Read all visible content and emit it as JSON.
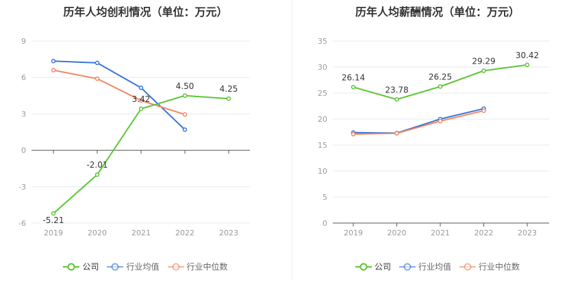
{
  "chart_data": [
    {
      "type": "line",
      "title": "历年人均创利情况（单位：万元）",
      "categories": [
        "2019",
        "2020",
        "2021",
        "2022",
        "2023"
      ],
      "ylim": [
        -6,
        9
      ],
      "yticks": [
        "9",
        "6",
        "3",
        "0",
        "-3",
        "-6"
      ],
      "series": [
        {
          "name": "公司",
          "color": "#5dc535",
          "values": [
            -5.21,
            -2.01,
            3.42,
            4.5,
            4.25
          ],
          "labels": [
            "-5.21",
            "-2.01",
            "3.42",
            "4.50",
            "4.25"
          ]
        },
        {
          "name": "行业均值",
          "color": "#3a73d6",
          "values": [
            7.35,
            7.2,
            5.15,
            1.7,
            null
          ]
        },
        {
          "name": "行业中位数",
          "color": "#f28762",
          "values": [
            6.6,
            5.9,
            4.1,
            2.95,
            null
          ]
        }
      ],
      "grid": true,
      "legend_position": "bottom"
    },
    {
      "type": "line",
      "title": "历年人均薪酬情况（单位：万元）",
      "categories": [
        "2019",
        "2020",
        "2021",
        "2022",
        "2023"
      ],
      "ylim": [
        0,
        35
      ],
      "yticks": [
        "35",
        "30",
        "25",
        "20",
        "15",
        "10",
        "5",
        "0"
      ],
      "series": [
        {
          "name": "公司",
          "color": "#5dc535",
          "values": [
            26.14,
            23.78,
            26.25,
            29.29,
            30.42
          ],
          "labels": [
            "26.14",
            "23.78",
            "26.25",
            "29.29",
            "30.42"
          ]
        },
        {
          "name": "行业均值",
          "color": "#3a73d6",
          "values": [
            17.4,
            17.3,
            20.0,
            22.0,
            null
          ]
        },
        {
          "name": "行业中位数",
          "color": "#f28762",
          "values": [
            17.1,
            17.25,
            19.6,
            21.6,
            null
          ]
        }
      ],
      "grid": true,
      "legend_position": "bottom"
    }
  ]
}
